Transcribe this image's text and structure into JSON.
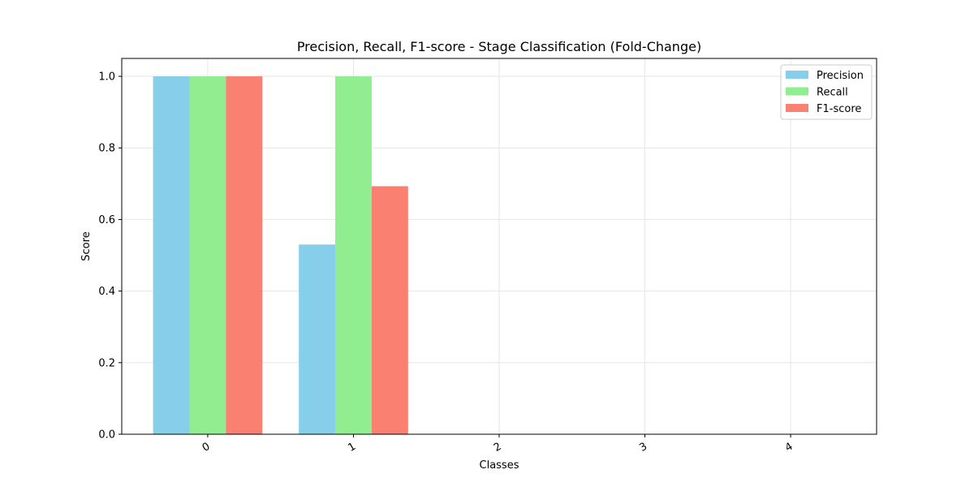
{
  "chart_data": {
    "type": "bar",
    "title": "Precision, Recall, F1-score - Stage Classification (Fold-Change)",
    "xlabel": "Classes",
    "ylabel": "Score",
    "categories": [
      "0",
      "1",
      "2",
      "3",
      "4"
    ],
    "ylim": [
      0,
      1.05
    ],
    "yticks": [
      0.0,
      0.2,
      0.4,
      0.6,
      0.8,
      1.0
    ],
    "ytick_labels": [
      "0.0",
      "0.2",
      "0.4",
      "0.6",
      "0.8",
      "1.0"
    ],
    "grid": true,
    "legend_position": "top-right",
    "series": [
      {
        "name": "Precision",
        "color": "#87ceeb",
        "values": [
          1.0,
          0.53,
          0.0,
          0.0,
          0.0
        ]
      },
      {
        "name": "Recall",
        "color": "#90ee90",
        "values": [
          1.0,
          1.0,
          0.0,
          0.0,
          0.0
        ]
      },
      {
        "name": "F1-score",
        "color": "#fa8072",
        "values": [
          1.0,
          0.693,
          0.0,
          0.0,
          0.0
        ]
      }
    ]
  }
}
